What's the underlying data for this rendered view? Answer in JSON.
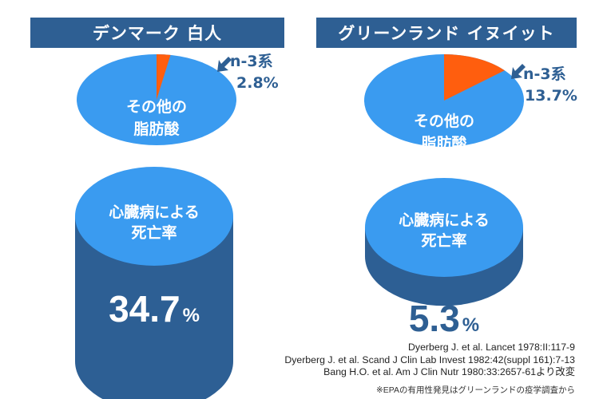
{
  "colors": {
    "header_bg": "#2e5f93",
    "pie_main": "#3a9bf0",
    "pie_slice": "#ff5e0e",
    "cylinder_side": "#2d5f94",
    "cylinder_top": "#3a9bf0",
    "text_blue": "#2e5f93",
    "label_white": "#ffffff"
  },
  "panels": [
    {
      "title": "デンマーク 白人",
      "pie_label": [
        "その他の",
        "脂肪酸"
      ],
      "slice_label": [
        "n-3系",
        "2.8%"
      ],
      "cylinder_label": [
        "心臓病による",
        "死亡率"
      ],
      "value_number": "34.7",
      "value_unit": "%"
    },
    {
      "title": "グリーンランド イヌイット",
      "pie_label": [
        "その他の",
        "脂肪酸"
      ],
      "slice_label": [
        "n-3系",
        "13.7%"
      ],
      "cylinder_label": [
        "心臓病による",
        "死亡率"
      ],
      "value_number": "5.3",
      "value_unit": "%"
    }
  ],
  "chart_data": [
    {
      "type": "pie",
      "title": "デンマーク 白人",
      "categories": [
        "n-3系",
        "その他の脂肪酸"
      ],
      "values": [
        2.8,
        97.2
      ]
    },
    {
      "type": "pie",
      "title": "グリーンランド イヌイット",
      "categories": [
        "n-3系",
        "その他の脂肪酸"
      ],
      "values": [
        13.7,
        86.3
      ]
    },
    {
      "type": "bar",
      "categories": [
        "デンマーク 白人",
        "グリーンランド イヌイット"
      ],
      "values": [
        34.7,
        5.3
      ],
      "ylabel": "心臓病による死亡率 (%)"
    }
  ],
  "references": [
    "Dyerberg J. et al. Lancet 1978:II:117-9",
    "Dyerberg J. et al. Scand J Clin Lab Invest 1982:42(suppl 161):7-13",
    "Bang H.O. et al. Am J Clin Nutr 1980:33:2657-61より改変"
  ],
  "footnote": "※EPAの有用性発見はグリーンランドの疫学調査から"
}
